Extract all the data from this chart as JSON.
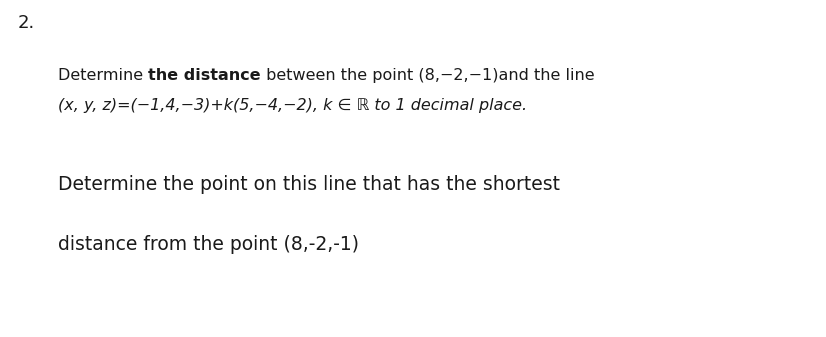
{
  "bg_color": "#ffffff",
  "text_color": "#1a1a1a",
  "number": "2.",
  "line1_p1": "Determine ",
  "line1_bold": "the distance",
  "line1_p2": " between the point (8,−2,−1)and the line",
  "line2": "(x, y, z)=(−1,4,−3)+k(5,−4,−2), k ∈ ℝ to 1 decimal place.",
  "line3": "Determine the point on this line that has the shortest",
  "line4": "distance from the point (8,-2,-1)",
  "fs_small": 11.5,
  "fs_large": 13.5,
  "fs_number": 13
}
